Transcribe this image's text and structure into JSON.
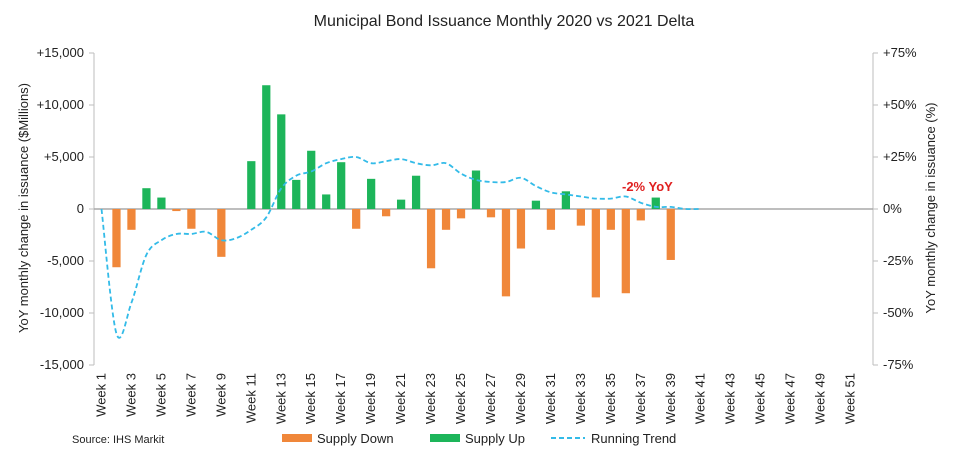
{
  "chart_data": {
    "type": "bar",
    "title": "Municipal Bond Issuance Monthly 2020 vs 2021 Delta",
    "ylabel": "YoY monthly change in issuance ($Millions)",
    "y2label": "YoY monthly change in issuance (%)",
    "ylim": [
      -15000,
      15000
    ],
    "y2lim": [
      -75,
      75
    ],
    "yticks": [
      "+15,000",
      "+10,000",
      "+5,000",
      "0",
      "-5,000",
      "-10,000",
      "-15,000"
    ],
    "y2ticks": [
      "+75%",
      "+50%",
      "+25%",
      "0%",
      "-25%",
      "-50%",
      "-75%"
    ],
    "xticks": [
      "Week 1",
      "Week 3",
      "Week 5",
      "Week 7",
      "Week 9",
      "Week 11",
      "Week 13",
      "Week 15",
      "Week 17",
      "Week 19",
      "Week 21",
      "Week 23",
      "Week 25",
      "Week 27",
      "Week 29",
      "Week 31",
      "Week 33",
      "Week 35",
      "Week 37",
      "Week 39",
      "Week 41",
      "Week 43",
      "Week 45",
      "Week 47",
      "Week 49",
      "Week 51"
    ],
    "num_weeks": 52,
    "grid": false,
    "legend_position": "bottom",
    "series": [
      {
        "name": "Supply Down",
        "color": "#f0873a",
        "points": [
          [
            2,
            -5600
          ],
          [
            3,
            -2000
          ],
          [
            6,
            -200
          ],
          [
            7,
            -1900
          ],
          [
            9,
            -4600
          ],
          [
            18,
            -1900
          ],
          [
            20,
            -700
          ],
          [
            23,
            -5700
          ],
          [
            24,
            -2000
          ],
          [
            25,
            -900
          ],
          [
            27,
            -800
          ],
          [
            28,
            -8400
          ],
          [
            29,
            -3800
          ],
          [
            31,
            -2000
          ],
          [
            33,
            -1600
          ],
          [
            34,
            -8500
          ],
          [
            35,
            -2000
          ],
          [
            36,
            -8100
          ],
          [
            37,
            -1100
          ],
          [
            39,
            -4900
          ]
        ]
      },
      {
        "name": "Supply Up",
        "color": "#1db55a",
        "points": [
          [
            4,
            2000
          ],
          [
            5,
            1100
          ],
          [
            11,
            4600
          ],
          [
            12,
            11900
          ],
          [
            13,
            9100
          ],
          [
            14,
            2800
          ],
          [
            15,
            5600
          ],
          [
            16,
            1400
          ],
          [
            17,
            4500
          ],
          [
            19,
            2900
          ],
          [
            21,
            900
          ],
          [
            22,
            3200
          ],
          [
            26,
            3700
          ],
          [
            30,
            800
          ],
          [
            32,
            1700
          ],
          [
            38,
            1100
          ]
        ]
      },
      {
        "name": "Running Trend",
        "color": "#33bbe8",
        "axis": "right",
        "values": [
          0,
          -60,
          -45,
          -22,
          -15,
          -12,
          -12,
          -11,
          -15,
          -14,
          -10,
          -4,
          10,
          16,
          18,
          22,
          24,
          25,
          22,
          23,
          24,
          22,
          21,
          22,
          17,
          14,
          13,
          13,
          15,
          11,
          8,
          7,
          6,
          5,
          5,
          6,
          3,
          1,
          1,
          0,
          0
        ]
      }
    ],
    "annotation": "-2% YoY",
    "source": "Source: IHS Markit"
  }
}
